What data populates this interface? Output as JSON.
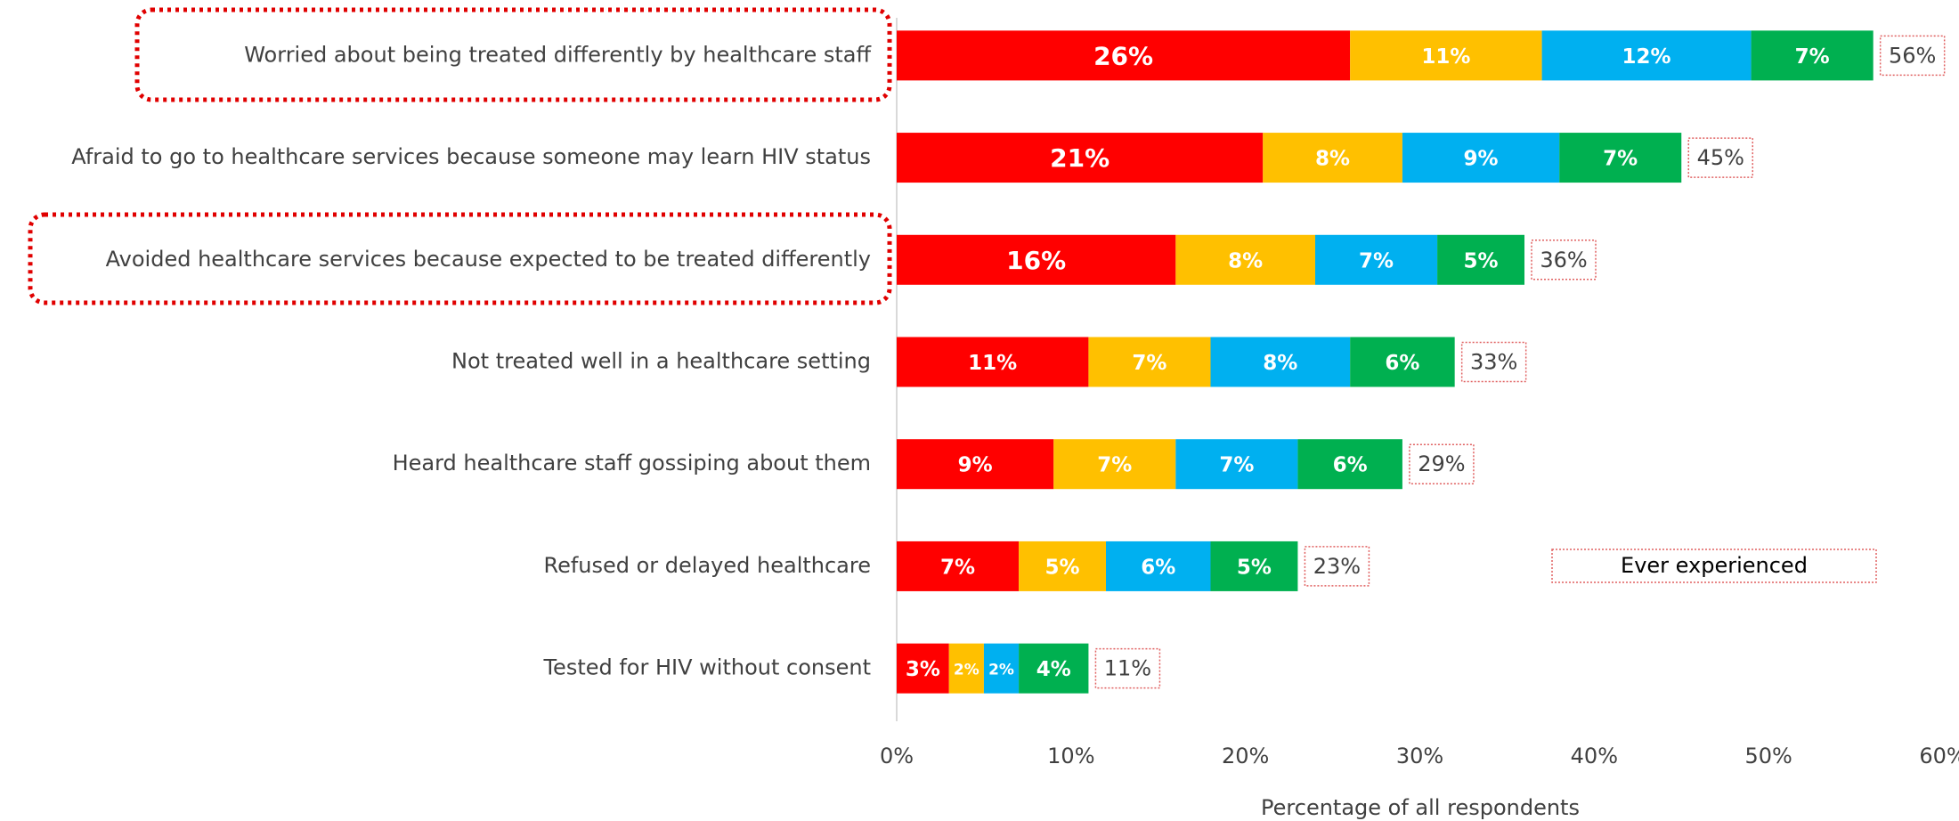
{
  "chart_data": {
    "type": "stacked-bar-horizontal",
    "categories": [
      "Worried about being treated differently by healthcare staff",
      "Afraid to go to healthcare services because someone may learn HIV status",
      "Avoided healthcare services because expected to be treated differently",
      "Not treated well in a healthcare setting",
      "Heard healthcare staff gossiping about them",
      "Refused or delayed healthcare",
      "Tested for HIV without consent"
    ],
    "series": [
      {
        "color": "#ff0000",
        "values": [
          26,
          21,
          16,
          11,
          9,
          7,
          3
        ],
        "value_labels": [
          "26%",
          "21%",
          "16%",
          "11%",
          "9%",
          "7%",
          "3%"
        ]
      },
      {
        "color": "#ffc000",
        "values": [
          11,
          8,
          8,
          7,
          7,
          5,
          2
        ],
        "value_labels": [
          "11%",
          "8%",
          "8%",
          "7%",
          "7%",
          "5%",
          "2%"
        ]
      },
      {
        "color": "#00b0f0",
        "values": [
          12,
          9,
          7,
          8,
          7,
          6,
          2
        ],
        "value_labels": [
          "12%",
          "9%",
          "7%",
          "8%",
          "7%",
          "6%",
          "2%"
        ]
      },
      {
        "color": "#00b050",
        "values": [
          7,
          7,
          5,
          6,
          6,
          5,
          4
        ],
        "value_labels": [
          "7%",
          "7%",
          "5%",
          "6%",
          "6%",
          "5%",
          "4%"
        ]
      }
    ],
    "totals": {
      "name": "Ever experienced",
      "values": [
        56,
        45,
        36,
        33,
        29,
        23,
        11
      ],
      "value_labels": [
        "56%",
        "45%",
        "36%",
        "33%",
        "29%",
        "23%",
        "11%"
      ]
    },
    "xlabel": "Percentage of all respondents",
    "xlim": [
      0,
      60
    ],
    "xticks": [
      {
        "value": 0,
        "label": "0%"
      },
      {
        "value": 10,
        "label": "10%"
      },
      {
        "value": 20,
        "label": "20%"
      },
      {
        "value": 30,
        "label": "30%"
      },
      {
        "value": 40,
        "label": "40%"
      },
      {
        "value": 50,
        "label": "50%"
      },
      {
        "value": 60,
        "label": "60%"
      }
    ]
  }
}
